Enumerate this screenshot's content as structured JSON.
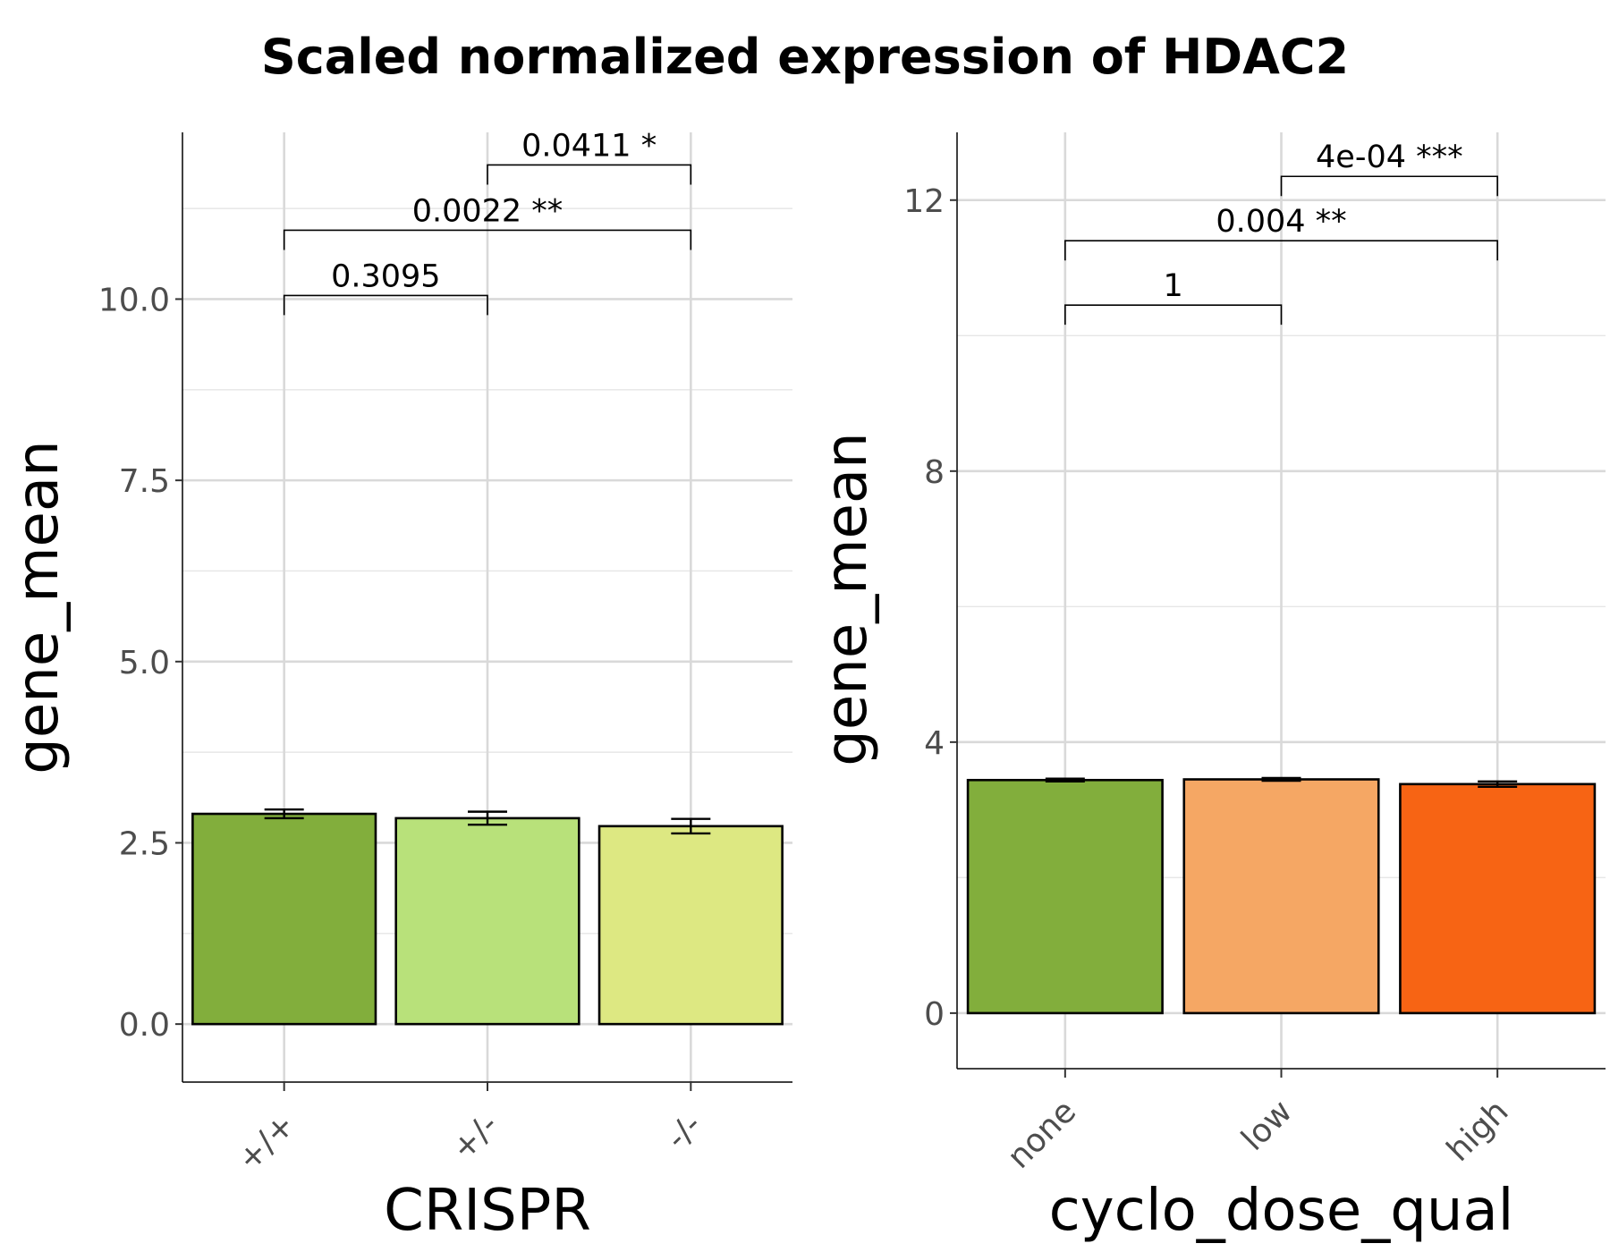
{
  "title": "Scaled normalized expression of HDAC2",
  "chart_data": [
    {
      "type": "bar",
      "xlabel": "CRISPR",
      "ylabel": "gene_mean",
      "ylim": [
        -0.8,
        12.3
      ],
      "yticks": [
        0.0,
        2.5,
        5.0,
        7.5,
        10.0
      ],
      "ytick_labels": [
        "0.0",
        "2.5",
        "5.0",
        "7.5",
        "10.0"
      ],
      "yminor": [
        1.25,
        3.75,
        6.25,
        8.75,
        11.25
      ],
      "grid": true,
      "categories": [
        "+/+",
        "+/-",
        "-/-"
      ],
      "values": [
        2.9,
        2.84,
        2.73
      ],
      "errors": [
        0.06,
        0.09,
        0.1
      ],
      "colors": [
        "#82ae3c",
        "#b8e17a",
        "#dde882"
      ],
      "comparisons": [
        {
          "from": 0,
          "to": 1,
          "label": "0.3095",
          "y": 10.05
        },
        {
          "from": 0,
          "to": 2,
          "label": "0.0022 **",
          "y": 10.95
        },
        {
          "from": 1,
          "to": 2,
          "label": "0.0411 *",
          "y": 11.85
        }
      ]
    },
    {
      "type": "bar",
      "xlabel": "cyclo_dose_qual",
      "ylabel": "gene_mean",
      "ylim": [
        -0.82,
        13.0
      ],
      "yticks": [
        0,
        4,
        8,
        12
      ],
      "ytick_labels": [
        "0",
        "4",
        "8",
        "12"
      ],
      "yminor": [
        2,
        6,
        10
      ],
      "grid": true,
      "categories": [
        "none",
        "low",
        "high"
      ],
      "values": [
        3.44,
        3.45,
        3.38
      ],
      "errors": [
        0.02,
        0.02,
        0.04
      ],
      "colors": [
        "#82ae3c",
        "#f5a764",
        "#f76414"
      ],
      "comparisons": [
        {
          "from": 0,
          "to": 1,
          "label": "1",
          "y": 10.45
        },
        {
          "from": 0,
          "to": 2,
          "label": "0.004 **",
          "y": 11.4
        },
        {
          "from": 1,
          "to": 2,
          "label": "4e-04 ***",
          "y": 12.35
        }
      ]
    }
  ]
}
